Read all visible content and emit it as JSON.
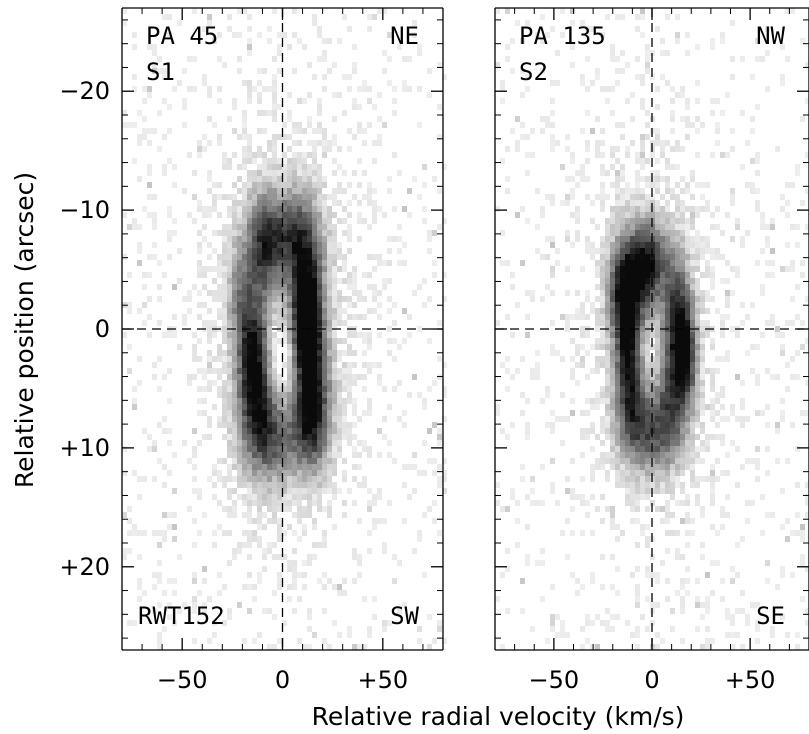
{
  "figure": {
    "xlabel": "Relative radial velocity (km/s)",
    "ylabel": "Relative position (arcsec)"
  },
  "chart_data": [
    {
      "type": "heatmap",
      "panel": "left",
      "labels": {
        "pa": "PA 45",
        "slit": "S1",
        "top_right": "NE",
        "bottom_left": "RWT152",
        "bottom_right": "SW"
      },
      "xlim": [
        -80,
        80
      ],
      "ylim": [
        -27,
        27
      ],
      "y_inverted": true,
      "xticks": [
        -50,
        0,
        50
      ],
      "xtick_labels": [
        "−50",
        "0",
        "+50"
      ],
      "yticks": [
        -20,
        -10,
        0,
        10,
        20
      ],
      "ytick_labels": [
        "−20",
        "−10",
        "0",
        "+10",
        "+20"
      ],
      "crosshair": {
        "x": 0,
        "y": 0
      },
      "blobs": [
        {
          "x": 0,
          "y": 0,
          "sx": 22,
          "sy": 10,
          "w": 0.22
        },
        {
          "x": 12,
          "y": -0.5,
          "sx": 4.5,
          "sy": 2.5,
          "w": 0.95
        },
        {
          "x": 14,
          "y": 4,
          "sx": 6,
          "sy": 3.5,
          "w": 0.65
        },
        {
          "x": 12,
          "y": -5,
          "sx": 6,
          "sy": 3.5,
          "w": 0.6
        },
        {
          "x": 15,
          "y": 8,
          "sx": 6,
          "sy": 3,
          "w": 0.55
        },
        {
          "x": -15,
          "y": 2,
          "sx": 5,
          "sy": 3.5,
          "w": 0.75
        },
        {
          "x": -10,
          "y": -7,
          "sx": 6,
          "sy": 3,
          "w": 0.6
        },
        {
          "x": -12,
          "y": 7,
          "sx": 7,
          "sy": 3.5,
          "w": 0.5
        },
        {
          "x": -3,
          "y": 9,
          "sx": 9,
          "sy": 2.5,
          "w": 0.45
        },
        {
          "x": 3,
          "y": -8,
          "sx": 8,
          "sy": 2.5,
          "w": 0.5
        },
        {
          "x": -22,
          "y": -3,
          "sx": 4,
          "sy": 3,
          "w": 0.3
        }
      ],
      "void": {
        "x": 0,
        "y": 3,
        "sx": 6,
        "sy": 3.5,
        "depth": 0.35
      }
    },
    {
      "type": "heatmap",
      "panel": "right",
      "labels": {
        "pa": "PA 135",
        "slit": "S2",
        "top_right": "NW",
        "bottom_left": "",
        "bottom_right": "SE"
      },
      "xlim": [
        -80,
        80
      ],
      "ylim": [
        -27,
        27
      ],
      "y_inverted": true,
      "xticks": [
        -50,
        0,
        50
      ],
      "xtick_labels": [
        "−50",
        "0",
        "+50"
      ],
      "yticks": [
        -20,
        -10,
        0,
        10,
        20
      ],
      "crosshair": {
        "x": 0,
        "y": 0
      },
      "blobs": [
        {
          "x": 0,
          "y": 1,
          "sx": 19,
          "sy": 9,
          "w": 0.22
        },
        {
          "x": -15,
          "y": -3,
          "sx": 5,
          "sy": 3,
          "w": 0.8
        },
        {
          "x": -5,
          "y": -4,
          "sx": 6,
          "sy": 3,
          "w": 0.6
        },
        {
          "x": 13,
          "y": -1,
          "sx": 5,
          "sy": 3,
          "w": 0.7
        },
        {
          "x": 17,
          "y": 2.5,
          "sx": 4,
          "sy": 2.5,
          "w": 0.7
        },
        {
          "x": -10,
          "y": 6,
          "sx": 6,
          "sy": 3,
          "w": 0.55
        },
        {
          "x": 10,
          "y": 6,
          "sx": 6,
          "sy": 3,
          "w": 0.5
        },
        {
          "x": -12,
          "y": 2,
          "sx": 4,
          "sy": 3,
          "w": 0.5
        },
        {
          "x": 0,
          "y": 9,
          "sx": 9,
          "sy": 2,
          "w": 0.45
        },
        {
          "x": 0,
          "y": -6,
          "sx": 8,
          "sy": 2,
          "w": 0.45
        }
      ],
      "void": {
        "x": -1,
        "y": 1.5,
        "sx": 5,
        "sy": 3,
        "depth": 0.3
      }
    }
  ]
}
